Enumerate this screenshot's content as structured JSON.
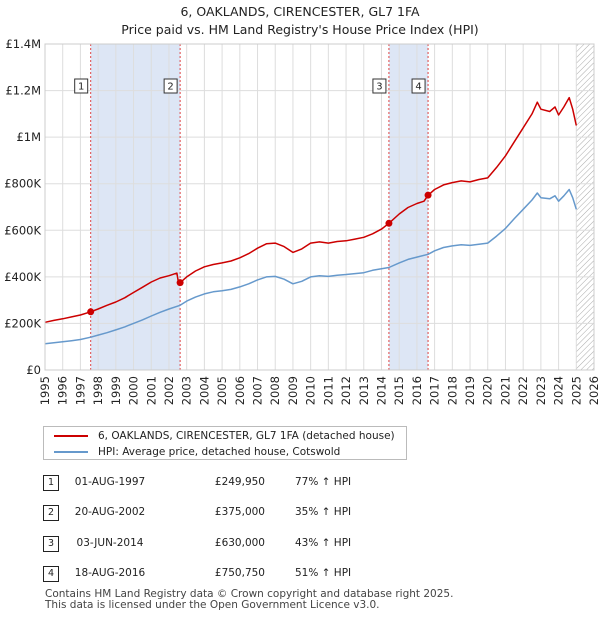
{
  "chart_data": {
    "type": "line",
    "title": "6, OAKLANDS, CIRENCESTER, GL7 1FA",
    "subtitle": "Price paid vs. HM Land Registry's House Price Index (HPI)",
    "xlim": [
      1995,
      2026
    ],
    "ylim": [
      0,
      1400000
    ],
    "x_ticks": [
      1995,
      1996,
      1997,
      1998,
      1999,
      2000,
      2001,
      2002,
      2003,
      2004,
      2005,
      2006,
      2007,
      2008,
      2009,
      2010,
      2011,
      2012,
      2013,
      2014,
      2015,
      2016,
      2017,
      2018,
      2019,
      2020,
      2021,
      2022,
      2023,
      2024,
      2025,
      2026
    ],
    "y_ticks": [
      {
        "value": 0,
        "label": "£0"
      },
      {
        "value": 200000,
        "label": "£200K"
      },
      {
        "value": 400000,
        "label": "£400K"
      },
      {
        "value": 600000,
        "label": "£600K"
      },
      {
        "value": 800000,
        "label": "£800K"
      },
      {
        "value": 1000000,
        "label": "£1M"
      },
      {
        "value": 1200000,
        "label": "£1.2M"
      },
      {
        "value": 1400000,
        "label": "£1.4M"
      }
    ],
    "shaded_ranges": [
      [
        1997.58,
        2002.63
      ],
      [
        2014.42,
        2016.63
      ]
    ],
    "hatched_from": 2025.0,
    "series": [
      {
        "name": "6, OAKLANDS, CIRENCESTER, GL7 1FA (detached house)",
        "color": "#cc0000",
        "points": [
          [
            1995.0,
            205000
          ],
          [
            1995.5,
            213000
          ],
          [
            1996.0,
            220000
          ],
          [
            1996.5,
            228000
          ],
          [
            1997.0,
            236000
          ],
          [
            1997.58,
            249950
          ],
          [
            1998.0,
            262000
          ],
          [
            1998.5,
            278000
          ],
          [
            1999.0,
            292000
          ],
          [
            1999.5,
            310000
          ],
          [
            2000.0,
            333000
          ],
          [
            2000.5,
            355000
          ],
          [
            2001.0,
            378000
          ],
          [
            2001.5,
            395000
          ],
          [
            2002.0,
            405000
          ],
          [
            2002.45,
            416000
          ],
          [
            2002.55,
            368000
          ],
          [
            2002.63,
            375000
          ],
          [
            2003.0,
            400000
          ],
          [
            2003.5,
            425000
          ],
          [
            2004.0,
            443000
          ],
          [
            2004.5,
            453000
          ],
          [
            2005.0,
            460000
          ],
          [
            2005.5,
            468000
          ],
          [
            2006.0,
            482000
          ],
          [
            2006.5,
            500000
          ],
          [
            2007.0,
            523000
          ],
          [
            2007.5,
            542000
          ],
          [
            2008.0,
            545000
          ],
          [
            2008.5,
            530000
          ],
          [
            2009.0,
            505000
          ],
          [
            2009.5,
            520000
          ],
          [
            2010.0,
            545000
          ],
          [
            2010.5,
            550000
          ],
          [
            2011.0,
            545000
          ],
          [
            2011.5,
            552000
          ],
          [
            2012.0,
            555000
          ],
          [
            2012.5,
            562000
          ],
          [
            2013.0,
            570000
          ],
          [
            2013.5,
            585000
          ],
          [
            2014.0,
            605000
          ],
          [
            2014.42,
            630000
          ],
          [
            2015.0,
            670000
          ],
          [
            2015.5,
            698000
          ],
          [
            2016.0,
            715000
          ],
          [
            2016.4,
            725000
          ],
          [
            2016.63,
            750750
          ],
          [
            2017.0,
            775000
          ],
          [
            2017.5,
            795000
          ],
          [
            2018.0,
            805000
          ],
          [
            2018.5,
            812000
          ],
          [
            2019.0,
            808000
          ],
          [
            2019.5,
            818000
          ],
          [
            2020.0,
            825000
          ],
          [
            2020.5,
            870000
          ],
          [
            2021.0,
            920000
          ],
          [
            2021.5,
            980000
          ],
          [
            2022.0,
            1040000
          ],
          [
            2022.5,
            1100000
          ],
          [
            2022.8,
            1150000
          ],
          [
            2023.0,
            1120000
          ],
          [
            2023.5,
            1110000
          ],
          [
            2023.8,
            1130000
          ],
          [
            2024.0,
            1095000
          ],
          [
            2024.3,
            1130000
          ],
          [
            2024.6,
            1170000
          ],
          [
            2024.8,
            1120000
          ],
          [
            2025.0,
            1050000
          ]
        ]
      },
      {
        "name": "HPI: Average price, detached house, Cotswold",
        "color": "#6699cc",
        "points": [
          [
            1995.0,
            113000
          ],
          [
            1995.5,
            117000
          ],
          [
            1996.0,
            121000
          ],
          [
            1996.5,
            126000
          ],
          [
            1997.0,
            131000
          ],
          [
            1997.58,
            141000
          ],
          [
            1998.0,
            150000
          ],
          [
            1998.5,
            160000
          ],
          [
            1999.0,
            172000
          ],
          [
            1999.5,
            185000
          ],
          [
            2000.0,
            200000
          ],
          [
            2000.5,
            215000
          ],
          [
            2001.0,
            232000
          ],
          [
            2001.5,
            248000
          ],
          [
            2002.0,
            262000
          ],
          [
            2002.63,
            278000
          ],
          [
            2003.0,
            296000
          ],
          [
            2003.5,
            313000
          ],
          [
            2004.0,
            327000
          ],
          [
            2004.5,
            336000
          ],
          [
            2005.0,
            340000
          ],
          [
            2005.5,
            346000
          ],
          [
            2006.0,
            357000
          ],
          [
            2006.5,
            370000
          ],
          [
            2007.0,
            387000
          ],
          [
            2007.5,
            400000
          ],
          [
            2008.0,
            402000
          ],
          [
            2008.5,
            390000
          ],
          [
            2009.0,
            370000
          ],
          [
            2009.5,
            381000
          ],
          [
            2010.0,
            400000
          ],
          [
            2010.5,
            405000
          ],
          [
            2011.0,
            402000
          ],
          [
            2011.5,
            407000
          ],
          [
            2012.0,
            410000
          ],
          [
            2012.5,
            414000
          ],
          [
            2013.0,
            418000
          ],
          [
            2013.5,
            428000
          ],
          [
            2014.0,
            435000
          ],
          [
            2014.42,
            440000
          ],
          [
            2015.0,
            460000
          ],
          [
            2015.5,
            475000
          ],
          [
            2016.0,
            485000
          ],
          [
            2016.63,
            497000
          ],
          [
            2017.0,
            512000
          ],
          [
            2017.5,
            526000
          ],
          [
            2018.0,
            533000
          ],
          [
            2018.5,
            538000
          ],
          [
            2019.0,
            535000
          ],
          [
            2019.5,
            540000
          ],
          [
            2020.0,
            545000
          ],
          [
            2020.5,
            575000
          ],
          [
            2021.0,
            608000
          ],
          [
            2021.5,
            650000
          ],
          [
            2022.0,
            690000
          ],
          [
            2022.5,
            730000
          ],
          [
            2022.8,
            760000
          ],
          [
            2023.0,
            740000
          ],
          [
            2023.5,
            735000
          ],
          [
            2023.8,
            748000
          ],
          [
            2024.0,
            725000
          ],
          [
            2024.3,
            748000
          ],
          [
            2024.6,
            775000
          ],
          [
            2024.8,
            740000
          ],
          [
            2025.0,
            690000
          ]
        ]
      }
    ],
    "sales": [
      {
        "id": "1",
        "x": 1997.58,
        "price": 249950
      },
      {
        "id": "2",
        "x": 2002.63,
        "price": 375000
      },
      {
        "id": "3",
        "x": 2014.42,
        "price": 630000
      },
      {
        "id": "4",
        "x": 2016.63,
        "price": 750750
      }
    ]
  },
  "legend": {
    "property_label": "6, OAKLANDS, CIRENCESTER, GL7 1FA (detached house)",
    "hpi_label": "HPI: Average price, detached house, Cotswold",
    "property_color": "#cc0000",
    "hpi_color": "#6699cc"
  },
  "sales_table": [
    {
      "num": "1",
      "date": "01-AUG-1997",
      "price": "£249,950",
      "hpi": "77% ↑ HPI"
    },
    {
      "num": "2",
      "date": "20-AUG-2002",
      "price": "£375,000",
      "hpi": "35% ↑ HPI"
    },
    {
      "num": "3",
      "date": "03-JUN-2014",
      "price": "£630,000",
      "hpi": "43% ↑ HPI"
    },
    {
      "num": "4",
      "date": "18-AUG-2016",
      "price": "£750,750",
      "hpi": "51% ↑ HPI"
    }
  ],
  "footer": {
    "line1": "Contains HM Land Registry data © Crown copyright and database right 2025.",
    "line2": "This data is licensed under the Open Government Licence v3.0."
  }
}
